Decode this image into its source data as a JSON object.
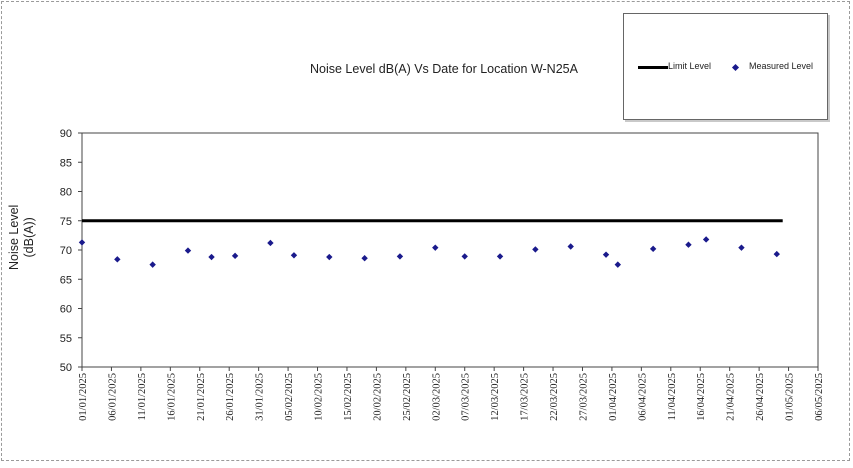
{
  "chart_data": {
    "type": "scatter",
    "title": "Noise Level dB(A) Vs Date for Location W-N25A",
    "ylabel": "Noise Level\n(dB(A))",
    "xlabel": "",
    "ylim": [
      50,
      90
    ],
    "yticks": [
      50,
      55,
      60,
      65,
      70,
      75,
      80,
      85,
      90
    ],
    "xlim": [
      "01/01/2025",
      "06/05/2025"
    ],
    "xtick_labels": [
      "01/01/2025",
      "06/01/2025",
      "11/01/2025",
      "16/01/2025",
      "21/01/2025",
      "26/01/2025",
      "31/01/2025",
      "05/02/2025",
      "10/02/2025",
      "15/02/2025",
      "20/02/2025",
      "25/02/2025",
      "02/03/2025",
      "07/03/2025",
      "12/03/2025",
      "17/03/2025",
      "22/03/2025",
      "27/03/2025",
      "01/04/2025",
      "06/04/2025",
      "11/04/2025",
      "16/04/2025",
      "21/04/2025",
      "26/04/2025",
      "01/05/2025",
      "06/05/2025"
    ],
    "legend_position": "top-right",
    "series": [
      {
        "name": "Limit Level",
        "kind": "line",
        "color": "#000000",
        "points": [
          {
            "x": "01/01/2025",
            "y": 75
          },
          {
            "x": "30/04/2025",
            "y": 75
          }
        ]
      },
      {
        "name": "Measured Level",
        "kind": "scatter",
        "color": "#1a1a8c",
        "marker": "diamond",
        "points": [
          {
            "x": "01/01/2025",
            "y": 71.3
          },
          {
            "x": "07/01/2025",
            "y": 68.4
          },
          {
            "x": "13/01/2025",
            "y": 67.5
          },
          {
            "x": "19/01/2025",
            "y": 69.9
          },
          {
            "x": "23/01/2025",
            "y": 68.8
          },
          {
            "x": "27/01/2025",
            "y": 69.0
          },
          {
            "x": "02/02/2025",
            "y": 71.2
          },
          {
            "x": "06/02/2025",
            "y": 69.1
          },
          {
            "x": "12/02/2025",
            "y": 68.8
          },
          {
            "x": "18/02/2025",
            "y": 68.6
          },
          {
            "x": "24/02/2025",
            "y": 68.9
          },
          {
            "x": "02/03/2025",
            "y": 70.4
          },
          {
            "x": "07/03/2025",
            "y": 68.9
          },
          {
            "x": "13/03/2025",
            "y": 68.9
          },
          {
            "x": "19/03/2025",
            "y": 70.1
          },
          {
            "x": "25/03/2025",
            "y": 70.6
          },
          {
            "x": "31/03/2025",
            "y": 69.2
          },
          {
            "x": "02/04/2025",
            "y": 67.5
          },
          {
            "x": "08/04/2025",
            "y": 70.2
          },
          {
            "x": "14/04/2025",
            "y": 70.9
          },
          {
            "x": "17/04/2025",
            "y": 71.8
          },
          {
            "x": "23/04/2025",
            "y": 70.4
          },
          {
            "x": "29/04/2025",
            "y": 69.3
          }
        ]
      }
    ]
  }
}
